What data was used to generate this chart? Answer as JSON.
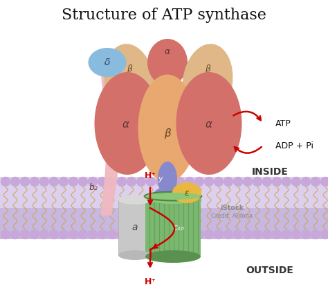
{
  "title": "Structure of ATP synthase",
  "title_fontsize": 16,
  "bg_color": "#ffffff",
  "inside_label": "INSIDE",
  "outside_label": "OUTSIDE",
  "atp_label": "ATP",
  "adp_label": "ADP + Pi",
  "b2_label": "b₂",
  "a_label": "a",
  "c10_label": "c₁₀",
  "y_label": "y",
  "epsilon_label": "ε",
  "delta_label": "δ",
  "alpha_label": "α",
  "beta_label": "β",
  "hplus_top": "H⁺",
  "hplus_bottom": "H⁺",
  "alpha_color": "#d4706a",
  "beta_front_color": "#e8a870",
  "beta_back_color": "#e0b888",
  "delta_color": "#88bbdd",
  "b2_color": "#f0b8c0",
  "gamma_color": "#8888cc",
  "epsilon_color": "#e8b840",
  "c_ring_color": "#7ab870",
  "c_ring_dark": "#5a9050",
  "c_ring_top": "#8bc878",
  "a_subunit_color": "#c8c8c8",
  "arrow_color": "#cc0000",
  "membrane_inner_color": "#ddd0ee",
  "membrane_outer_color": "#c8b8e0",
  "headgroup_color": "#c8a8d8",
  "tail_color": "#c8a040"
}
